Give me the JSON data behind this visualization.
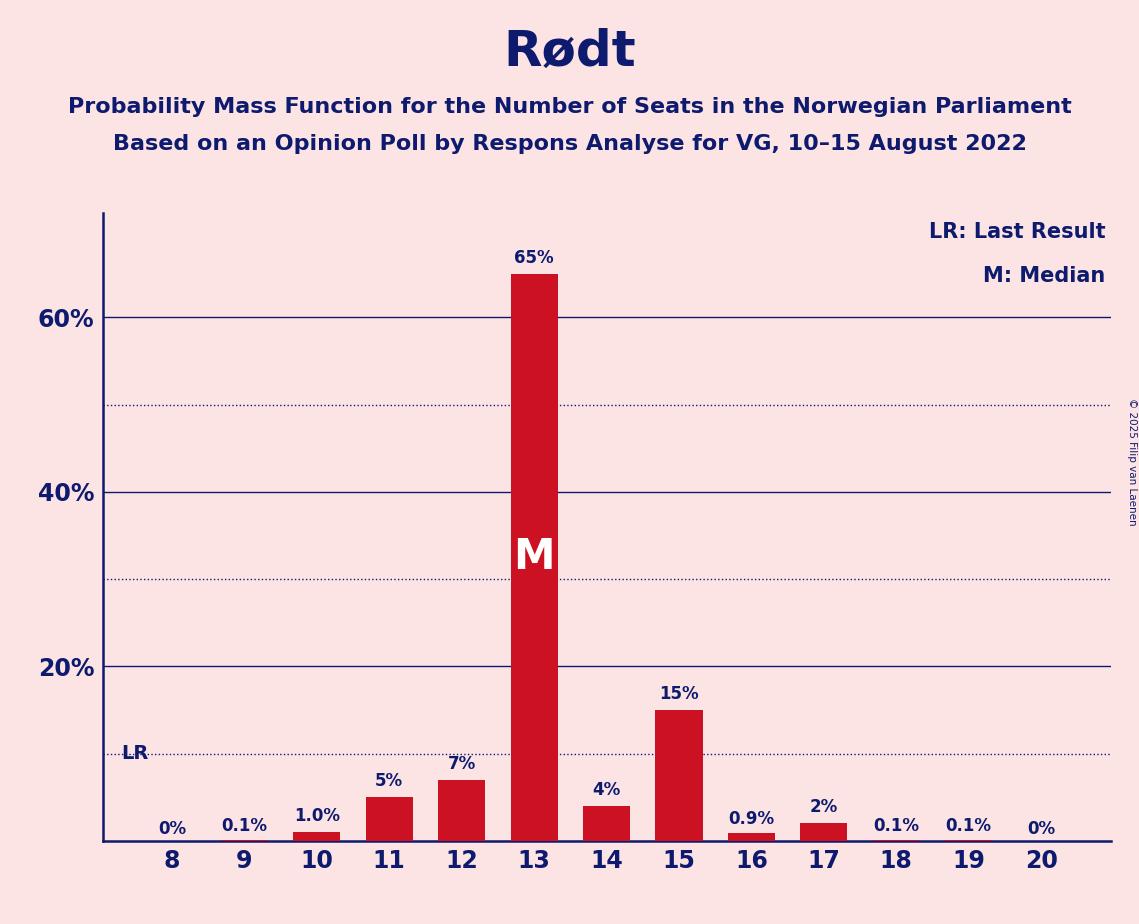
{
  "title": "Rødt",
  "subtitle1": "Probability Mass Function for the Number of Seats in the Norwegian Parliament",
  "subtitle2": "Based on an Opinion Poll by Respons Analyse for VG, 10–15 August 2022",
  "copyright": "© 2025 Filip van Laenen",
  "categories": [
    8,
    9,
    10,
    11,
    12,
    13,
    14,
    15,
    16,
    17,
    18,
    19,
    20
  ],
  "values": [
    0.0,
    0.1,
    1.0,
    5.0,
    7.0,
    65.0,
    4.0,
    15.0,
    0.9,
    2.0,
    0.1,
    0.1,
    0.0
  ],
  "labels": [
    "0%",
    "0.1%",
    "1.0%",
    "5%",
    "7%",
    "65%",
    "4%",
    "15%",
    "0.9%",
    "2%",
    "0.1%",
    "0.1%",
    "0%"
  ],
  "bar_color": "#cc1122",
  "background_color": "#fce4e4",
  "text_color": "#0d1a6e",
  "median_seat": 13,
  "lr_seat": 8,
  "lr_line_value": 10.0,
  "solid_gridline_values": [
    20,
    40,
    60
  ],
  "dotted_gridline_values": [
    10,
    30,
    50
  ],
  "ytick_positions": [
    20,
    40,
    60
  ],
  "ytick_labels": [
    "20%",
    "40%",
    "60%"
  ],
  "ylim": [
    0,
    72
  ],
  "legend_lr": "LR: Last Result",
  "legend_m": "M: Median",
  "bar_width": 0.65
}
